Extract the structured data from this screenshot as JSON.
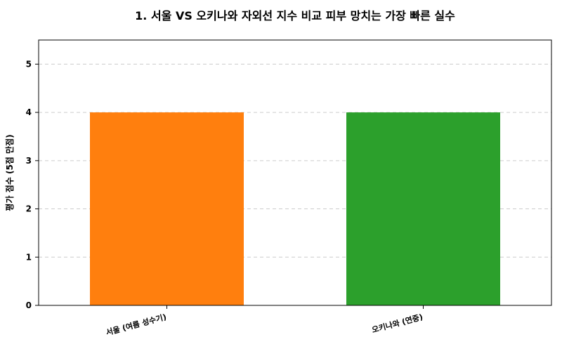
{
  "chart_data": {
    "type": "bar",
    "title": "1. 서울 VS 오키나와 자외선 지수 비교 피부 망치는 가장 빠른 실수",
    "xlabel": "",
    "ylabel": "평가 점수 (5점 만점)",
    "categories": [
      "서울 (여름 성수기)",
      "오키나와 (연중)"
    ],
    "values": [
      4,
      4
    ],
    "colors": [
      "#ff7f0e",
      "#2ca02c"
    ],
    "ylim": [
      0,
      5.5
    ],
    "yticks": [
      0,
      1,
      2,
      3,
      4,
      5
    ],
    "grid": true,
    "legend": "none"
  }
}
